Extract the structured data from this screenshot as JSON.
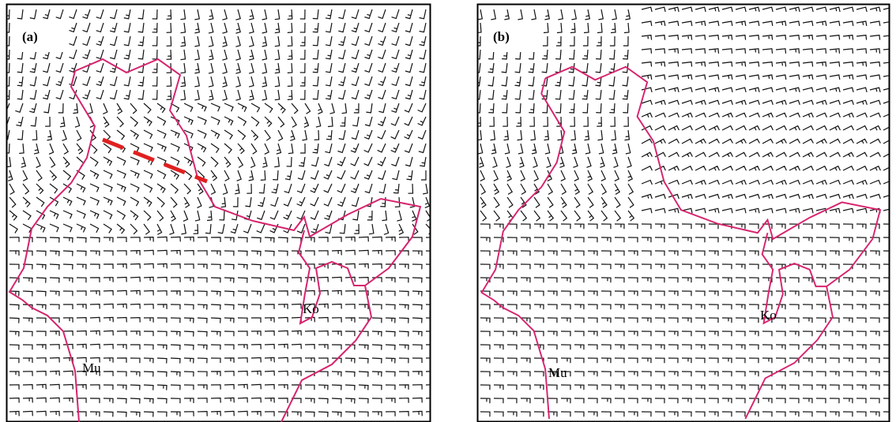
{
  "panels": [
    {
      "label": "(a)",
      "cities": [
        "Mu",
        "Ko"
      ]
    },
    {
      "label": "(b)",
      "cities": [
        "Mu",
        "Ko"
      ]
    }
  ]
}
